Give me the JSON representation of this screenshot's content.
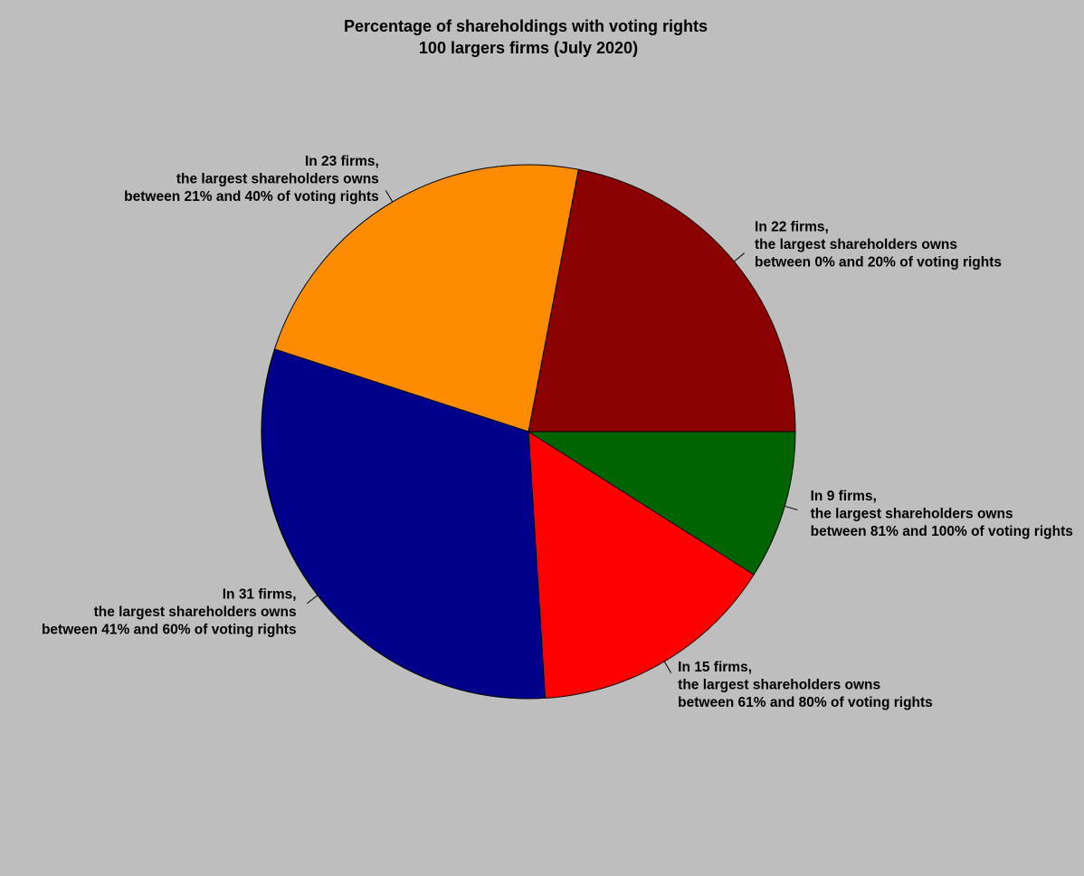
{
  "chart_data": {
    "type": "pie",
    "title": "Percentage of shareholdings with voting rights",
    "subtitle": "100 largers firms (July 2020)",
    "background": "#bebebe",
    "slices": [
      {
        "value": 22,
        "color": "#8b0000",
        "label_lines": [
          "In 22 firms,",
          "the largest shareholders owns",
          "between 0% and 20% of voting rights"
        ]
      },
      {
        "value": 23,
        "color": "#ff8c00",
        "label_lines": [
          "In 23 firms,",
          "the largest shareholders owns",
          "between 21% and 40% of voting rights"
        ]
      },
      {
        "value": 31,
        "color": "#00008b",
        "label_lines": [
          "In 31 firms,",
          "the largest shareholders owns",
          "between 41% and 60% of voting rights"
        ]
      },
      {
        "value": 15,
        "color": "#ff0000",
        "label_lines": [
          "In 15 firms,",
          "the largest shareholders owns",
          "between 61% and 80% of voting rights"
        ]
      },
      {
        "value": 9,
        "color": "#006400",
        "label_lines": [
          "In 9 firms,",
          "the largest shareholders owns",
          "between 81% and 100% of voting rights"
        ]
      }
    ]
  }
}
